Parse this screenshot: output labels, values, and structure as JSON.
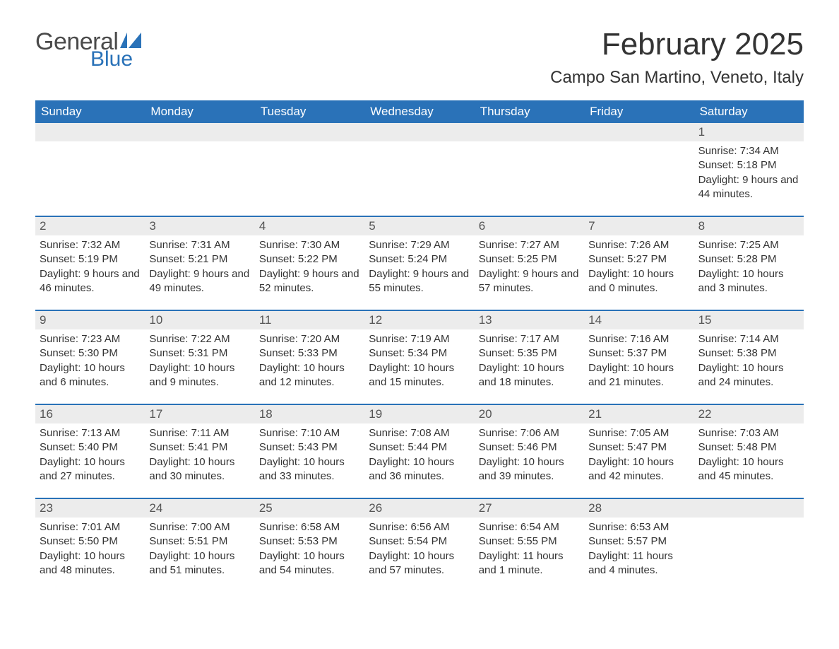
{
  "logo": {
    "text1": "General",
    "text2": "Blue",
    "flag_color": "#2a72b8"
  },
  "title": "February 2025",
  "location": "Campo San Martino, Veneto, Italy",
  "colors": {
    "header_bg": "#2a72b8",
    "header_text": "#ffffff",
    "daynum_bg": "#ececec",
    "text": "#333333",
    "rule": "#2a72b8"
  },
  "day_headers": [
    "Sunday",
    "Monday",
    "Tuesday",
    "Wednesday",
    "Thursday",
    "Friday",
    "Saturday"
  ],
  "weeks": [
    [
      null,
      null,
      null,
      null,
      null,
      null,
      {
        "n": "1",
        "sunrise": "Sunrise: 7:34 AM",
        "sunset": "Sunset: 5:18 PM",
        "daylight": "Daylight: 9 hours and 44 minutes."
      }
    ],
    [
      {
        "n": "2",
        "sunrise": "Sunrise: 7:32 AM",
        "sunset": "Sunset: 5:19 PM",
        "daylight": "Daylight: 9 hours and 46 minutes."
      },
      {
        "n": "3",
        "sunrise": "Sunrise: 7:31 AM",
        "sunset": "Sunset: 5:21 PM",
        "daylight": "Daylight: 9 hours and 49 minutes."
      },
      {
        "n": "4",
        "sunrise": "Sunrise: 7:30 AM",
        "sunset": "Sunset: 5:22 PM",
        "daylight": "Daylight: 9 hours and 52 minutes."
      },
      {
        "n": "5",
        "sunrise": "Sunrise: 7:29 AM",
        "sunset": "Sunset: 5:24 PM",
        "daylight": "Daylight: 9 hours and 55 minutes."
      },
      {
        "n": "6",
        "sunrise": "Sunrise: 7:27 AM",
        "sunset": "Sunset: 5:25 PM",
        "daylight": "Daylight: 9 hours and 57 minutes."
      },
      {
        "n": "7",
        "sunrise": "Sunrise: 7:26 AM",
        "sunset": "Sunset: 5:27 PM",
        "daylight": "Daylight: 10 hours and 0 minutes."
      },
      {
        "n": "8",
        "sunrise": "Sunrise: 7:25 AM",
        "sunset": "Sunset: 5:28 PM",
        "daylight": "Daylight: 10 hours and 3 minutes."
      }
    ],
    [
      {
        "n": "9",
        "sunrise": "Sunrise: 7:23 AM",
        "sunset": "Sunset: 5:30 PM",
        "daylight": "Daylight: 10 hours and 6 minutes."
      },
      {
        "n": "10",
        "sunrise": "Sunrise: 7:22 AM",
        "sunset": "Sunset: 5:31 PM",
        "daylight": "Daylight: 10 hours and 9 minutes."
      },
      {
        "n": "11",
        "sunrise": "Sunrise: 7:20 AM",
        "sunset": "Sunset: 5:33 PM",
        "daylight": "Daylight: 10 hours and 12 minutes."
      },
      {
        "n": "12",
        "sunrise": "Sunrise: 7:19 AM",
        "sunset": "Sunset: 5:34 PM",
        "daylight": "Daylight: 10 hours and 15 minutes."
      },
      {
        "n": "13",
        "sunrise": "Sunrise: 7:17 AM",
        "sunset": "Sunset: 5:35 PM",
        "daylight": "Daylight: 10 hours and 18 minutes."
      },
      {
        "n": "14",
        "sunrise": "Sunrise: 7:16 AM",
        "sunset": "Sunset: 5:37 PM",
        "daylight": "Daylight: 10 hours and 21 minutes."
      },
      {
        "n": "15",
        "sunrise": "Sunrise: 7:14 AM",
        "sunset": "Sunset: 5:38 PM",
        "daylight": "Daylight: 10 hours and 24 minutes."
      }
    ],
    [
      {
        "n": "16",
        "sunrise": "Sunrise: 7:13 AM",
        "sunset": "Sunset: 5:40 PM",
        "daylight": "Daylight: 10 hours and 27 minutes."
      },
      {
        "n": "17",
        "sunrise": "Sunrise: 7:11 AM",
        "sunset": "Sunset: 5:41 PM",
        "daylight": "Daylight: 10 hours and 30 minutes."
      },
      {
        "n": "18",
        "sunrise": "Sunrise: 7:10 AM",
        "sunset": "Sunset: 5:43 PM",
        "daylight": "Daylight: 10 hours and 33 minutes."
      },
      {
        "n": "19",
        "sunrise": "Sunrise: 7:08 AM",
        "sunset": "Sunset: 5:44 PM",
        "daylight": "Daylight: 10 hours and 36 minutes."
      },
      {
        "n": "20",
        "sunrise": "Sunrise: 7:06 AM",
        "sunset": "Sunset: 5:46 PM",
        "daylight": "Daylight: 10 hours and 39 minutes."
      },
      {
        "n": "21",
        "sunrise": "Sunrise: 7:05 AM",
        "sunset": "Sunset: 5:47 PM",
        "daylight": "Daylight: 10 hours and 42 minutes."
      },
      {
        "n": "22",
        "sunrise": "Sunrise: 7:03 AM",
        "sunset": "Sunset: 5:48 PM",
        "daylight": "Daylight: 10 hours and 45 minutes."
      }
    ],
    [
      {
        "n": "23",
        "sunrise": "Sunrise: 7:01 AM",
        "sunset": "Sunset: 5:50 PM",
        "daylight": "Daylight: 10 hours and 48 minutes."
      },
      {
        "n": "24",
        "sunrise": "Sunrise: 7:00 AM",
        "sunset": "Sunset: 5:51 PM",
        "daylight": "Daylight: 10 hours and 51 minutes."
      },
      {
        "n": "25",
        "sunrise": "Sunrise: 6:58 AM",
        "sunset": "Sunset: 5:53 PM",
        "daylight": "Daylight: 10 hours and 54 minutes."
      },
      {
        "n": "26",
        "sunrise": "Sunrise: 6:56 AM",
        "sunset": "Sunset: 5:54 PM",
        "daylight": "Daylight: 10 hours and 57 minutes."
      },
      {
        "n": "27",
        "sunrise": "Sunrise: 6:54 AM",
        "sunset": "Sunset: 5:55 PM",
        "daylight": "Daylight: 11 hours and 1 minute."
      },
      {
        "n": "28",
        "sunrise": "Sunrise: 6:53 AM",
        "sunset": "Sunset: 5:57 PM",
        "daylight": "Daylight: 11 hours and 4 minutes."
      },
      null
    ]
  ]
}
